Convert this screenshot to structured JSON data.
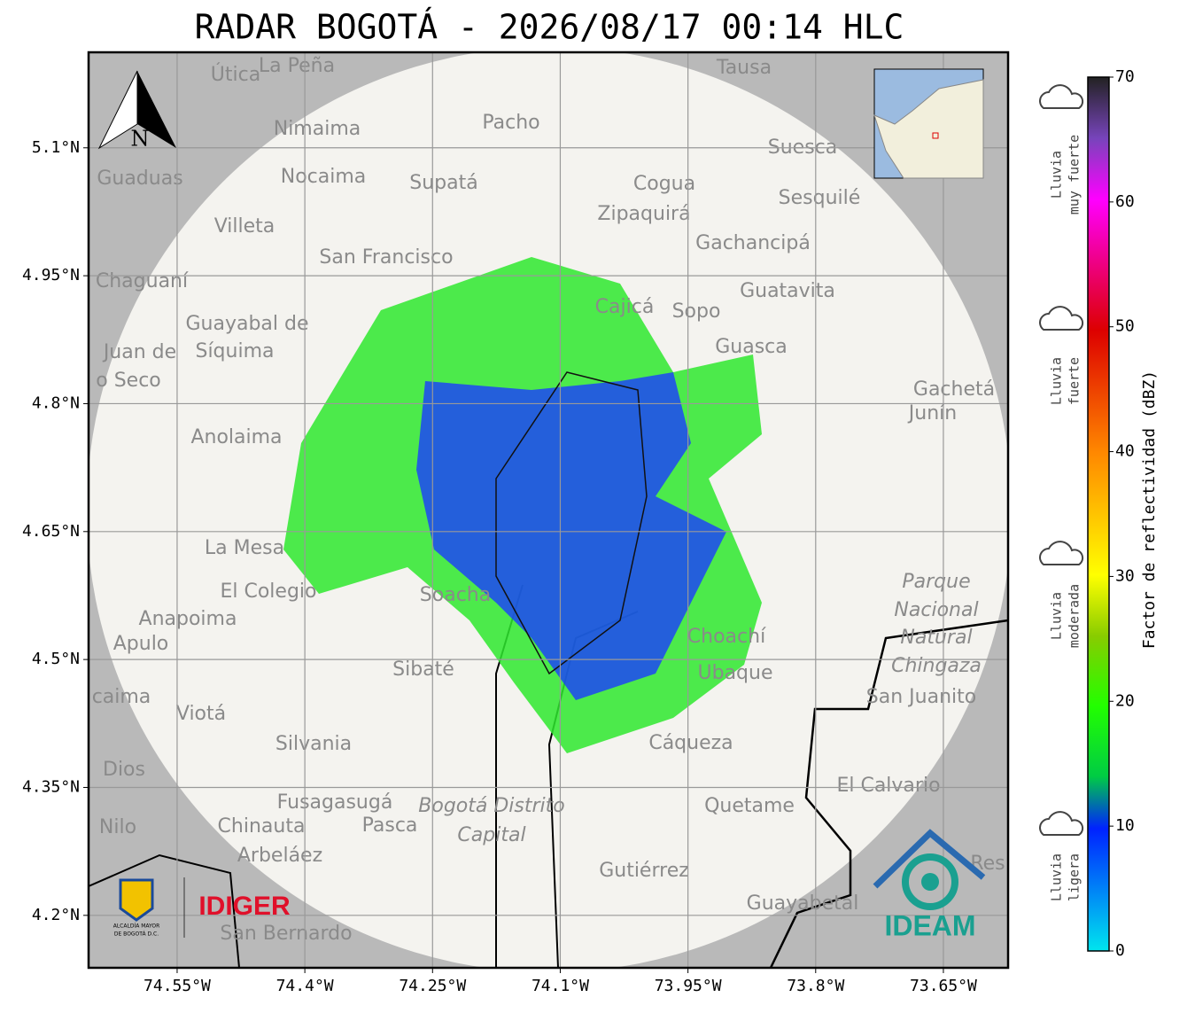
{
  "map": {
    "title": "RADAR BOGOTÁ - 2026/08/17 00:14 HLC",
    "lonlim": [
      -74.654,
      -73.574
    ],
    "latlim": [
      4.1385,
      5.212
    ],
    "lat_ticks": [
      {
        "value": 5.1,
        "label": "5.1°N"
      },
      {
        "value": 4.95,
        "label": "4.95°N"
      },
      {
        "value": 4.8,
        "label": "4.8°N"
      },
      {
        "value": 4.65,
        "label": "4.65°N"
      },
      {
        "value": 4.5,
        "label": "4.5°N"
      },
      {
        "value": 4.35,
        "label": "4.35°N"
      },
      {
        "value": 4.2,
        "label": "4.2°N"
      }
    ],
    "lon_ticks": [
      {
        "value": -74.55,
        "label": "74.55°W"
      },
      {
        "value": -74.4,
        "label": "74.4°W"
      },
      {
        "value": -74.25,
        "label": "74.25°W"
      },
      {
        "value": -74.1,
        "label": "74.1°W"
      },
      {
        "value": -73.95,
        "label": "73.95°W"
      },
      {
        "value": -73.8,
        "label": "73.8°W"
      },
      {
        "value": -73.65,
        "label": "73.65°W"
      }
    ],
    "colorbar": {
      "label": "Factor de reflectividad (dBZ)",
      "range": [
        0,
        70
      ],
      "ticks": [
        0,
        10,
        20,
        30,
        40,
        50,
        60,
        70
      ]
    },
    "intensity": [
      {
        "lines": [
          "Lluvia",
          "muy fuerte"
        ]
      },
      {
        "lines": [
          "Lluvia",
          "fuerte"
        ]
      },
      {
        "lines": [
          "Lluvia",
          "moderada"
        ]
      },
      {
        "lines": [
          "Lluvia",
          "ligera"
        ]
      }
    ],
    "north": "N",
    "places": [
      "Útica",
      "La Peña",
      "Tausa",
      "Pacho",
      "Nimaima",
      "Guaduas",
      "Nocaima",
      "Supatá",
      "Cogua",
      "Suesca",
      "Sesquilé",
      "Zipaquirá",
      "Villeta",
      "Gachancipá",
      "San Francisco",
      "Chaguaní",
      "Guatavita",
      "Cajicá",
      "Sopo",
      "Guayabal de",
      "Síquima",
      "Juan de",
      "o Seco",
      "Guasca",
      "Gachetá",
      "Junín",
      "Anolaima",
      "La Mesa",
      "El Colegio",
      "Soacha",
      "Anapoima",
      "Apulo",
      "Parque",
      "Nacional",
      "Natural",
      "Chingaza",
      "San Juanito",
      "Choachí",
      "Ubaque",
      "Sibaté",
      "caima",
      "Viotá",
      "Silvania",
      "Cáqueza",
      "Dios",
      "El Calvario",
      "Fusagasugá",
      "Quetame",
      "Bogotá Distrito",
      "Capital",
      "Chinauta",
      "Pasca",
      "Nilo",
      "Arbeláez",
      "Gutiérrez",
      "Guayabetal",
      "San Bernardo",
      "Res"
    ],
    "logos": {
      "idiger": "IDIGER",
      "ideam": "IDEAM",
      "alcaldia": [
        "ALCALDÍA MAYOR",
        "DE BOGOTÁ D.C."
      ]
    }
  }
}
